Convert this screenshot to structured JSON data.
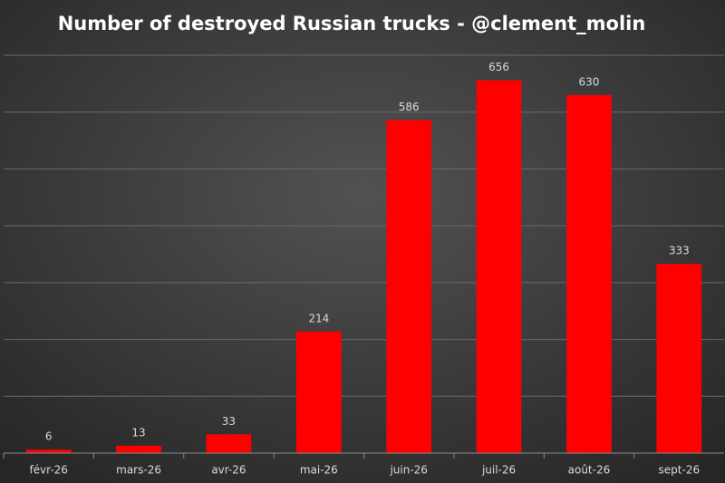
{
  "chart_data": {
    "type": "bar",
    "title": "Number of destroyed Russian trucks - @clement_molin",
    "categories": [
      "févr-26",
      "mars-26",
      "avr-26",
      "mai-26",
      "juin-26",
      "juil-26",
      "août-26",
      "sept-26"
    ],
    "values": [
      6,
      13,
      33,
      214,
      586,
      656,
      630,
      333
    ],
    "color": "#ff0000",
    "ylim": [
      0,
      700
    ],
    "yticks": [
      0,
      100,
      200,
      300,
      400,
      500,
      600,
      700
    ],
    "grid": true
  }
}
